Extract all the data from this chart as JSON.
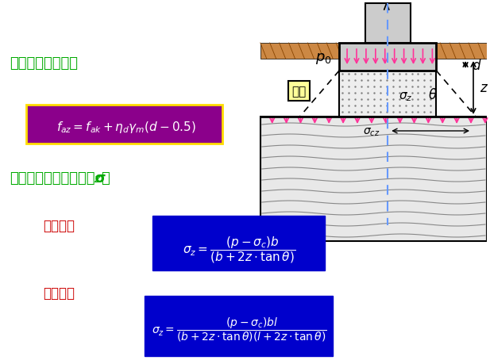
{
  "bg_color": "#ffffff",
  "title_color": "#00aa00",
  "formula_bg": "#8B008B",
  "formula_text": "#ffffff",
  "blue_box_bg": "#0000cc",
  "blue_box_text": "#ffffff",
  "red_text": "#cc0000",
  "black": "#000000",
  "pink_arrow": "#ff69b4",
  "blue_dashed": "#6699ff",
  "brown_soil": "#cc8844",
  "soil_fill": "#ddddaa",
  "sand_fill": "#cccccc",
  "label_yellow_bg": "#ffff99",
  "text1": "地基承载力修正：",
  "text2": "垫层底面处的附加应力σ",
  "text2b": "z",
  "text2c": "：",
  "text3": "条形基础",
  "text4": "矩形基础",
  "padeng_label": "垫层"
}
